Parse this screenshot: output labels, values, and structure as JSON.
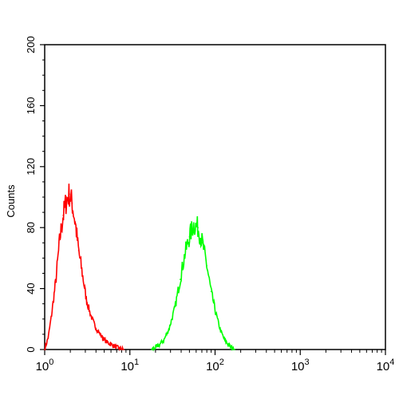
{
  "chart_data": {
    "type": "line",
    "title": "",
    "xlabel": "",
    "ylabel": "Counts",
    "x_scale": "log",
    "xlim": [
      1,
      10000
    ],
    "ylim": [
      0,
      200
    ],
    "x_ticks": [
      {
        "value": 1,
        "base": "10",
        "exp": "0"
      },
      {
        "value": 10,
        "base": "10",
        "exp": "1"
      },
      {
        "value": 100,
        "base": "10",
        "exp": "2"
      },
      {
        "value": 1000,
        "base": "10",
        "exp": "3"
      },
      {
        "value": 10000,
        "base": "10",
        "exp": "4"
      }
    ],
    "y_ticks": [
      0,
      40,
      80,
      120,
      160,
      200
    ],
    "grid": false,
    "series": [
      {
        "color": "#ff0000",
        "x": [
          1.0,
          1.1,
          1.2,
          1.35,
          1.5,
          1.65,
          1.8,
          1.95,
          2.1,
          2.3,
          2.5,
          2.8,
          3.1,
          3.5,
          4.0,
          4.6,
          5.3,
          6.2,
          7.3,
          8.5
        ],
        "y": [
          0,
          8,
          22,
          45,
          72,
          88,
          98,
          102,
          96,
          82,
          65,
          48,
          32,
          22,
          14,
          9,
          5,
          3,
          1,
          0
        ]
      },
      {
        "color": "#00ff00",
        "x": [
          18,
          21,
          25,
          29,
          34,
          39,
          44,
          50,
          56,
          63,
          71,
          80,
          90,
          102,
          115,
          130,
          150,
          170
        ],
        "y": [
          0,
          2,
          6,
          14,
          28,
          46,
          62,
          74,
          82,
          80,
          70,
          55,
          38,
          24,
          13,
          6,
          2,
          0
        ]
      }
    ]
  }
}
